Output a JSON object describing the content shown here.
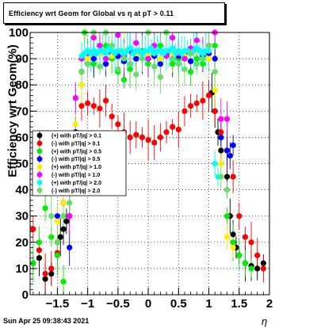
{
  "title": "Efficiency wrt Geom for Global vs   η at pT > 0.11",
  "timestamp": "Sun Apr 25 09:38:43 2021",
  "chart_data": {
    "type": "scatter",
    "title": "Efficiency wrt Geom for Global vs   η at pT > 0.11",
    "xlabel": "η",
    "ylabel": "Efficiency wrt Geom(%)",
    "xlim": [
      -1.95,
      2.0
    ],
    "ylim": [
      0,
      100
    ],
    "x_ticks": [
      -1.5,
      -1,
      -0.5,
      0,
      0.5,
      1,
      1.5,
      2
    ],
    "x_tick_labels": [
      "−1.5",
      "−1",
      "−0.5",
      "0",
      "0.5",
      "1",
      "1.5",
      "2"
    ],
    "y_ticks": [
      0,
      10,
      20,
      30,
      40,
      50,
      60,
      70,
      80,
      90,
      100
    ],
    "y_tick_labels": [
      "0",
      "10",
      "20",
      "30",
      "40",
      "50",
      "60",
      "70",
      "80",
      "90",
      "100"
    ],
    "grid": true,
    "legend_position": "left-middle",
    "series": [
      {
        "name": "(+) with pT/|q| > 0.1",
        "color": "#000000",
        "x": [
          -1.9,
          -1.8,
          -1.7,
          -1.6,
          -1.5,
          -1.45,
          -1.4,
          -1.35,
          -1.3,
          1.05,
          1.1,
          1.15,
          1.2,
          1.3,
          1.35,
          1.4,
          1.45,
          1.5,
          1.6,
          1.7,
          1.8,
          1.9
        ],
        "y": [
          12,
          14,
          6,
          8,
          20,
          22,
          25,
          28,
          30,
          77,
          70,
          62,
          55,
          45,
          30,
          23,
          18,
          15,
          12,
          11,
          10,
          12
        ]
      },
      {
        "name": "(-) with pT/|q| > 0.1",
        "color": "#ff0000",
        "x": [
          -1.9,
          -1.8,
          -1.7,
          -1.6,
          -1.5,
          -1.4,
          -1.3,
          -1.2,
          -1.1,
          -1.0,
          -0.9,
          -0.8,
          -0.7,
          -0.6,
          -0.5,
          -0.4,
          -0.3,
          -0.2,
          -0.1,
          0.0,
          0.1,
          0.2,
          0.3,
          0.4,
          0.5,
          0.6,
          0.7,
          0.8,
          0.9,
          1.0,
          1.1,
          1.2,
          1.3,
          1.4,
          1.5,
          1.6,
          1.7,
          1.8,
          1.9
        ],
        "y": [
          25,
          17,
          8,
          10,
          16,
          35,
          40,
          62,
          72,
          73,
          72,
          71,
          74,
          68,
          65,
          62,
          60,
          61,
          60,
          59,
          58,
          60,
          62,
          64,
          63,
          70,
          72,
          73,
          74,
          76,
          70,
          62,
          55,
          45,
          30,
          22,
          20,
          15,
          10
        ]
      },
      {
        "name": "(+) with pT/|q| > 0.5",
        "color": "#00ee00",
        "x": [
          -1.9,
          -1.8,
          -1.7,
          -1.6,
          -1.5,
          -1.4,
          -1.3,
          -1.2,
          -1.1,
          -1.05,
          -1.0,
          -0.9,
          -0.8,
          -0.7,
          -0.6,
          -0.5,
          -0.4,
          -0.3,
          -0.2,
          -0.1,
          0.0,
          0.1,
          0.2,
          0.3,
          0.4,
          0.5,
          0.6,
          0.7,
          0.8,
          0.9,
          1.0,
          1.1,
          1.2,
          1.3,
          1.4,
          1.5,
          1.6,
          1.7
        ],
        "y": [
          12,
          20,
          33,
          22,
          15,
          5,
          40,
          75,
          85,
          100,
          92,
          88,
          87,
          95,
          90,
          85,
          82,
          86,
          90,
          93,
          88,
          92,
          95,
          100,
          88,
          90,
          92,
          85,
          90,
          88,
          92,
          95,
          60,
          30,
          20,
          15,
          12,
          10
        ]
      },
      {
        "name": "(-) with pT/|q| > 0.5",
        "color": "#0000ff",
        "x": [
          -1.5,
          -1.4,
          -1.3,
          -1.2,
          -1.1,
          -1.0,
          -0.9,
          -0.8,
          -0.7,
          -0.6,
          -0.5,
          -0.4,
          -0.3,
          -0.2,
          -0.1,
          0.0,
          0.1,
          0.2,
          0.3,
          0.4,
          0.5,
          0.6,
          0.7,
          0.8,
          0.9,
          1.0,
          1.1,
          1.2,
          1.3,
          1.35,
          1.4
        ],
        "y": [
          30,
          35,
          18,
          62,
          85,
          88,
          90,
          92,
          88,
          92,
          91,
          89,
          93,
          90,
          92,
          90,
          91,
          88,
          92,
          90,
          91,
          92,
          89,
          93,
          91,
          92,
          90,
          60,
          55,
          53,
          57
        ]
      },
      {
        "name": "(+) with pT/|q| > 1.0",
        "color": "#ffee00",
        "x": [
          -1.5,
          -1.4,
          -1.3,
          -1.2,
          -1.1,
          -1.0,
          -0.8,
          -0.6,
          -0.4,
          -0.2,
          0.0,
          0.2,
          0.4,
          0.6,
          0.8,
          1.0,
          1.1,
          1.2,
          1.3,
          1.4
        ],
        "y": [
          28,
          35,
          40,
          65,
          80,
          90,
          92,
          91,
          93,
          92,
          91,
          90,
          92,
          91,
          93,
          90,
          78,
          50,
          22,
          18
        ]
      },
      {
        "name": "(-) with pT/|q| > 1.0",
        "color": "#ff00ff",
        "x": [
          -1.4,
          -1.3,
          -1.2,
          -1.1,
          -1.0,
          -0.9,
          -0.8,
          -0.7,
          -0.6,
          -0.5,
          -0.4,
          -0.3,
          -0.2,
          -0.1,
          0.0,
          0.1,
          0.2,
          0.3,
          0.4,
          0.5,
          0.6,
          0.7,
          0.8,
          0.9,
          1.0,
          1.1,
          1.2,
          1.3
        ],
        "y": [
          45,
          30,
          75,
          90,
          92,
          98,
          95,
          90,
          93,
          99,
          91,
          94,
          96,
          92,
          90,
          95,
          93,
          91,
          98,
          92,
          90,
          94,
          97,
          92,
          95,
          100,
          67,
          67
        ]
      },
      {
        "name": "(+) with pT/|q| > 2.0",
        "color": "#00ffff",
        "x": [
          -1.1,
          -1.05,
          -1.0,
          -0.95,
          -0.9,
          -0.85,
          -0.8,
          -0.75,
          -0.7,
          -0.65,
          -0.6,
          -0.55,
          -0.5,
          -0.45,
          -0.4,
          -0.35,
          -0.3,
          -0.25,
          -0.2,
          -0.15,
          -0.1,
          -0.05,
          0.0,
          0.05,
          0.1,
          0.15,
          0.2,
          0.25,
          0.3,
          0.35,
          0.4,
          0.45,
          0.5,
          0.55,
          0.6,
          0.65,
          0.7,
          0.75,
          0.8,
          0.85,
          0.9,
          0.95,
          1.0,
          1.1,
          1.15
        ],
        "y": [
          91,
          92,
          93,
          92,
          93,
          92,
          93,
          93,
          92,
          94,
          93,
          92,
          93,
          93,
          92,
          93,
          94,
          92,
          93,
          93,
          92,
          93,
          93,
          94,
          92,
          93,
          93,
          92,
          93,
          93,
          94,
          92,
          93,
          92,
          93,
          93,
          92,
          93,
          94,
          93,
          92,
          93,
          93,
          50,
          45
        ]
      },
      {
        "name": "(-) with pT/|q| > 2.0",
        "color": "#66dd66",
        "x": [
          -1.6,
          -1.5,
          -1.4,
          -1.3,
          -1.2,
          -1.1,
          -1.0,
          -0.9,
          -0.8,
          -0.7,
          -0.6,
          -0.5,
          -0.4,
          -0.3,
          -0.2,
          -0.1,
          0.0,
          0.1,
          0.2,
          0.3,
          0.4,
          0.5,
          0.6,
          0.7,
          0.8,
          0.9,
          1.0,
          1.1,
          1.2,
          1.3
        ],
        "y": [
          30,
          20,
          30,
          35,
          60,
          85,
          88,
          100,
          87,
          100,
          95,
          86,
          90,
          88,
          84,
          90,
          100,
          87,
          83,
          100,
          90,
          88,
          86,
          92,
          88,
          90,
          95,
          85,
          45,
          40
        ]
      }
    ]
  }
}
